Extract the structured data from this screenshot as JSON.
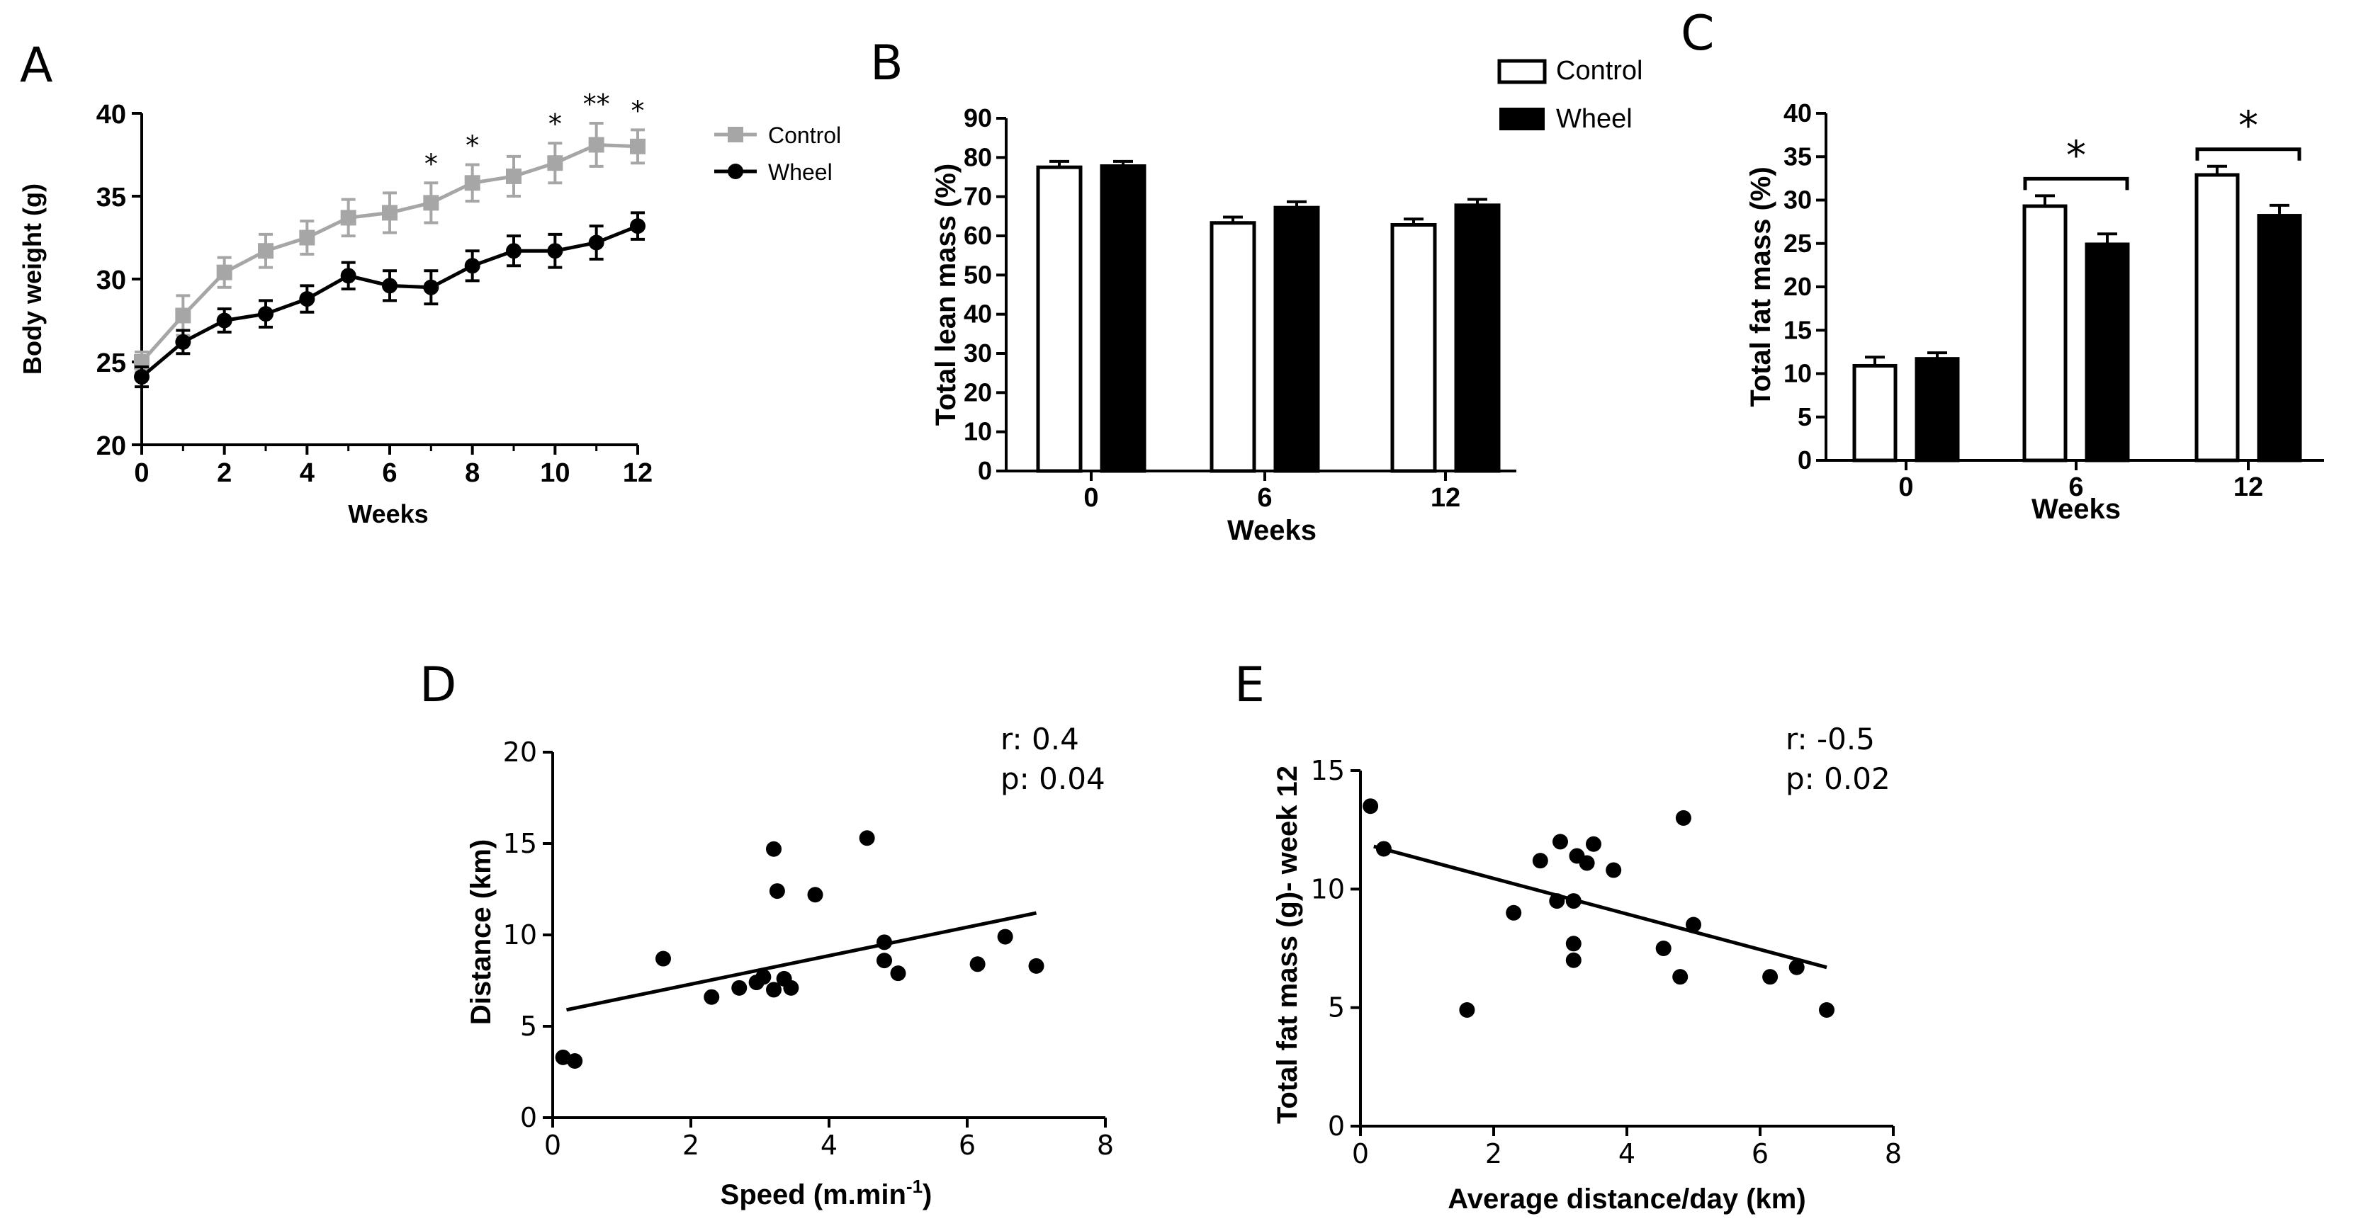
{
  "chart_data": [
    {
      "panel": "A",
      "type": "line",
      "xlabel": "Weeks",
      "ylabel": "Body weight (g)",
      "xlim": [
        0,
        12
      ],
      "ylim": [
        20,
        40
      ],
      "xticks": [
        "0",
        "2",
        "4",
        "6",
        "8",
        "10",
        "12"
      ],
      "yticks": [
        "20",
        "25",
        "30",
        "35",
        "40"
      ],
      "x": [
        0,
        1,
        2,
        3,
        4,
        5,
        6,
        7,
        8,
        9,
        10,
        11,
        12
      ],
      "series": [
        {
          "name": "Control",
          "color": "#a6a6a6",
          "marker": "square",
          "values": [
            25.0,
            27.8,
            30.4,
            31.7,
            32.5,
            33.7,
            34.0,
            34.6,
            35.8,
            36.2,
            37.0,
            38.1,
            38.0
          ],
          "errors": [
            0.6,
            1.2,
            0.9,
            1.0,
            1.0,
            1.1,
            1.2,
            1.2,
            1.1,
            1.2,
            1.2,
            1.3,
            1.0
          ]
        },
        {
          "name": "Wheel",
          "color": "#000000",
          "marker": "circle",
          "values": [
            24.1,
            26.2,
            27.5,
            27.9,
            28.8,
            30.2,
            29.6,
            29.5,
            30.8,
            31.7,
            31.7,
            32.2,
            33.2
          ],
          "errors": [
            0.6,
            0.7,
            0.7,
            0.8,
            0.8,
            0.8,
            0.9,
            1.0,
            0.9,
            0.9,
            1.0,
            1.0,
            0.8
          ]
        }
      ],
      "annotations": [
        {
          "x": 7,
          "label": "*"
        },
        {
          "x": 8,
          "label": "*"
        },
        {
          "x": 10,
          "label": "*"
        },
        {
          "x": 11,
          "label": "**"
        },
        {
          "x": 12,
          "label": "*"
        }
      ]
    },
    {
      "panel": "B",
      "type": "bar",
      "xlabel": "Weeks",
      "ylabel": "Total lean mass (%)",
      "ylim": [
        0,
        90
      ],
      "yticks": [
        "0",
        "10",
        "20",
        "30",
        "40",
        "50",
        "60",
        "70",
        "80",
        "90"
      ],
      "categories": [
        "0",
        "6",
        "12"
      ],
      "series": [
        {
          "name": "Control",
          "fill": "#ffffff",
          "values": [
            77.5,
            63.3,
            62.8
          ],
          "errors": [
            1.5,
            1.5,
            1.5
          ]
        },
        {
          "name": "Wheel",
          "fill": "#000000",
          "values": [
            77.8,
            67.2,
            67.8
          ],
          "errors": [
            1.2,
            1.5,
            1.5
          ]
        }
      ],
      "legend": [
        "Control",
        "Wheel"
      ]
    },
    {
      "panel": "C",
      "type": "bar",
      "xlabel": "Weeks",
      "ylabel": "Total fat mass (%)",
      "ylim": [
        0,
        40
      ],
      "yticks": [
        "0",
        "5",
        "10",
        "15",
        "20",
        "25",
        "30",
        "35",
        "40"
      ],
      "categories": [
        "0",
        "6",
        "12"
      ],
      "series": [
        {
          "name": "Control",
          "fill": "#ffffff",
          "values": [
            10.9,
            29.3,
            32.9
          ],
          "errors": [
            1.0,
            1.2,
            1.0
          ]
        },
        {
          "name": "Wheel",
          "fill": "#000000",
          "values": [
            11.7,
            24.9,
            28.2
          ],
          "errors": [
            0.7,
            1.2,
            1.2
          ]
        }
      ],
      "significance": [
        {
          "category": "6",
          "label": "*"
        },
        {
          "category": "12",
          "label": "*"
        }
      ]
    },
    {
      "panel": "D",
      "type": "scatter",
      "xlabel": "Speed (m.min",
      "xlabel_sup": "-1",
      "xlabel_end": ")",
      "ylabel": "Distance (km)",
      "xlim": [
        0,
        8
      ],
      "ylim": [
        0,
        20
      ],
      "xticks": [
        "0",
        "2",
        "4",
        "6",
        "8"
      ],
      "yticks": [
        "0",
        "5",
        "10",
        "15",
        "20"
      ],
      "points": [
        [
          0.15,
          3.3
        ],
        [
          0.32,
          3.1
        ],
        [
          1.6,
          8.7
        ],
        [
          2.3,
          6.6
        ],
        [
          2.7,
          7.1
        ],
        [
          2.95,
          7.4
        ],
        [
          3.05,
          7.7
        ],
        [
          3.2,
          7.0
        ],
        [
          3.2,
          14.7
        ],
        [
          3.25,
          12.4
        ],
        [
          3.35,
          7.6
        ],
        [
          3.45,
          7.1
        ],
        [
          3.8,
          12.2
        ],
        [
          4.55,
          15.3
        ],
        [
          4.8,
          9.6
        ],
        [
          4.8,
          8.6
        ],
        [
          5.0,
          7.9
        ],
        [
          6.15,
          8.4
        ],
        [
          6.55,
          9.9
        ],
        [
          7.0,
          8.3
        ]
      ],
      "fit_line": {
        "x": [
          0.2,
          7.0
        ],
        "y": [
          5.9,
          11.2
        ]
      },
      "stats": [
        "r: 0.4",
        "p: 0.04"
      ]
    },
    {
      "panel": "E",
      "type": "scatter",
      "xlabel": "Average distance/day (km)",
      "ylabel": "Total fat mass (g)- week 12",
      "xlim": [
        0,
        8
      ],
      "ylim": [
        0,
        15
      ],
      "xticks": [
        "0",
        "2",
        "4",
        "6",
        "8"
      ],
      "yticks": [
        "0",
        "5",
        "10",
        "15"
      ],
      "points": [
        [
          0.15,
          13.5
        ],
        [
          0.35,
          11.7
        ],
        [
          1.6,
          4.9
        ],
        [
          2.3,
          9.0
        ],
        [
          2.7,
          11.2
        ],
        [
          2.95,
          9.5
        ],
        [
          3.0,
          12.0
        ],
        [
          3.2,
          9.5
        ],
        [
          3.2,
          7.7
        ],
        [
          3.2,
          7.0
        ],
        [
          3.25,
          11.4
        ],
        [
          3.4,
          11.1
        ],
        [
          3.5,
          11.9
        ],
        [
          3.8,
          10.8
        ],
        [
          4.55,
          7.5
        ],
        [
          4.8,
          6.3
        ],
        [
          4.85,
          13.0
        ],
        [
          5.0,
          8.5
        ],
        [
          6.15,
          6.3
        ],
        [
          6.55,
          6.7
        ],
        [
          7.0,
          4.9
        ]
      ],
      "fit_line": {
        "x": [
          0.2,
          7.0
        ],
        "y": [
          11.8,
          6.7
        ]
      },
      "stats": [
        "r: -0.5",
        "p: 0.02"
      ]
    }
  ]
}
